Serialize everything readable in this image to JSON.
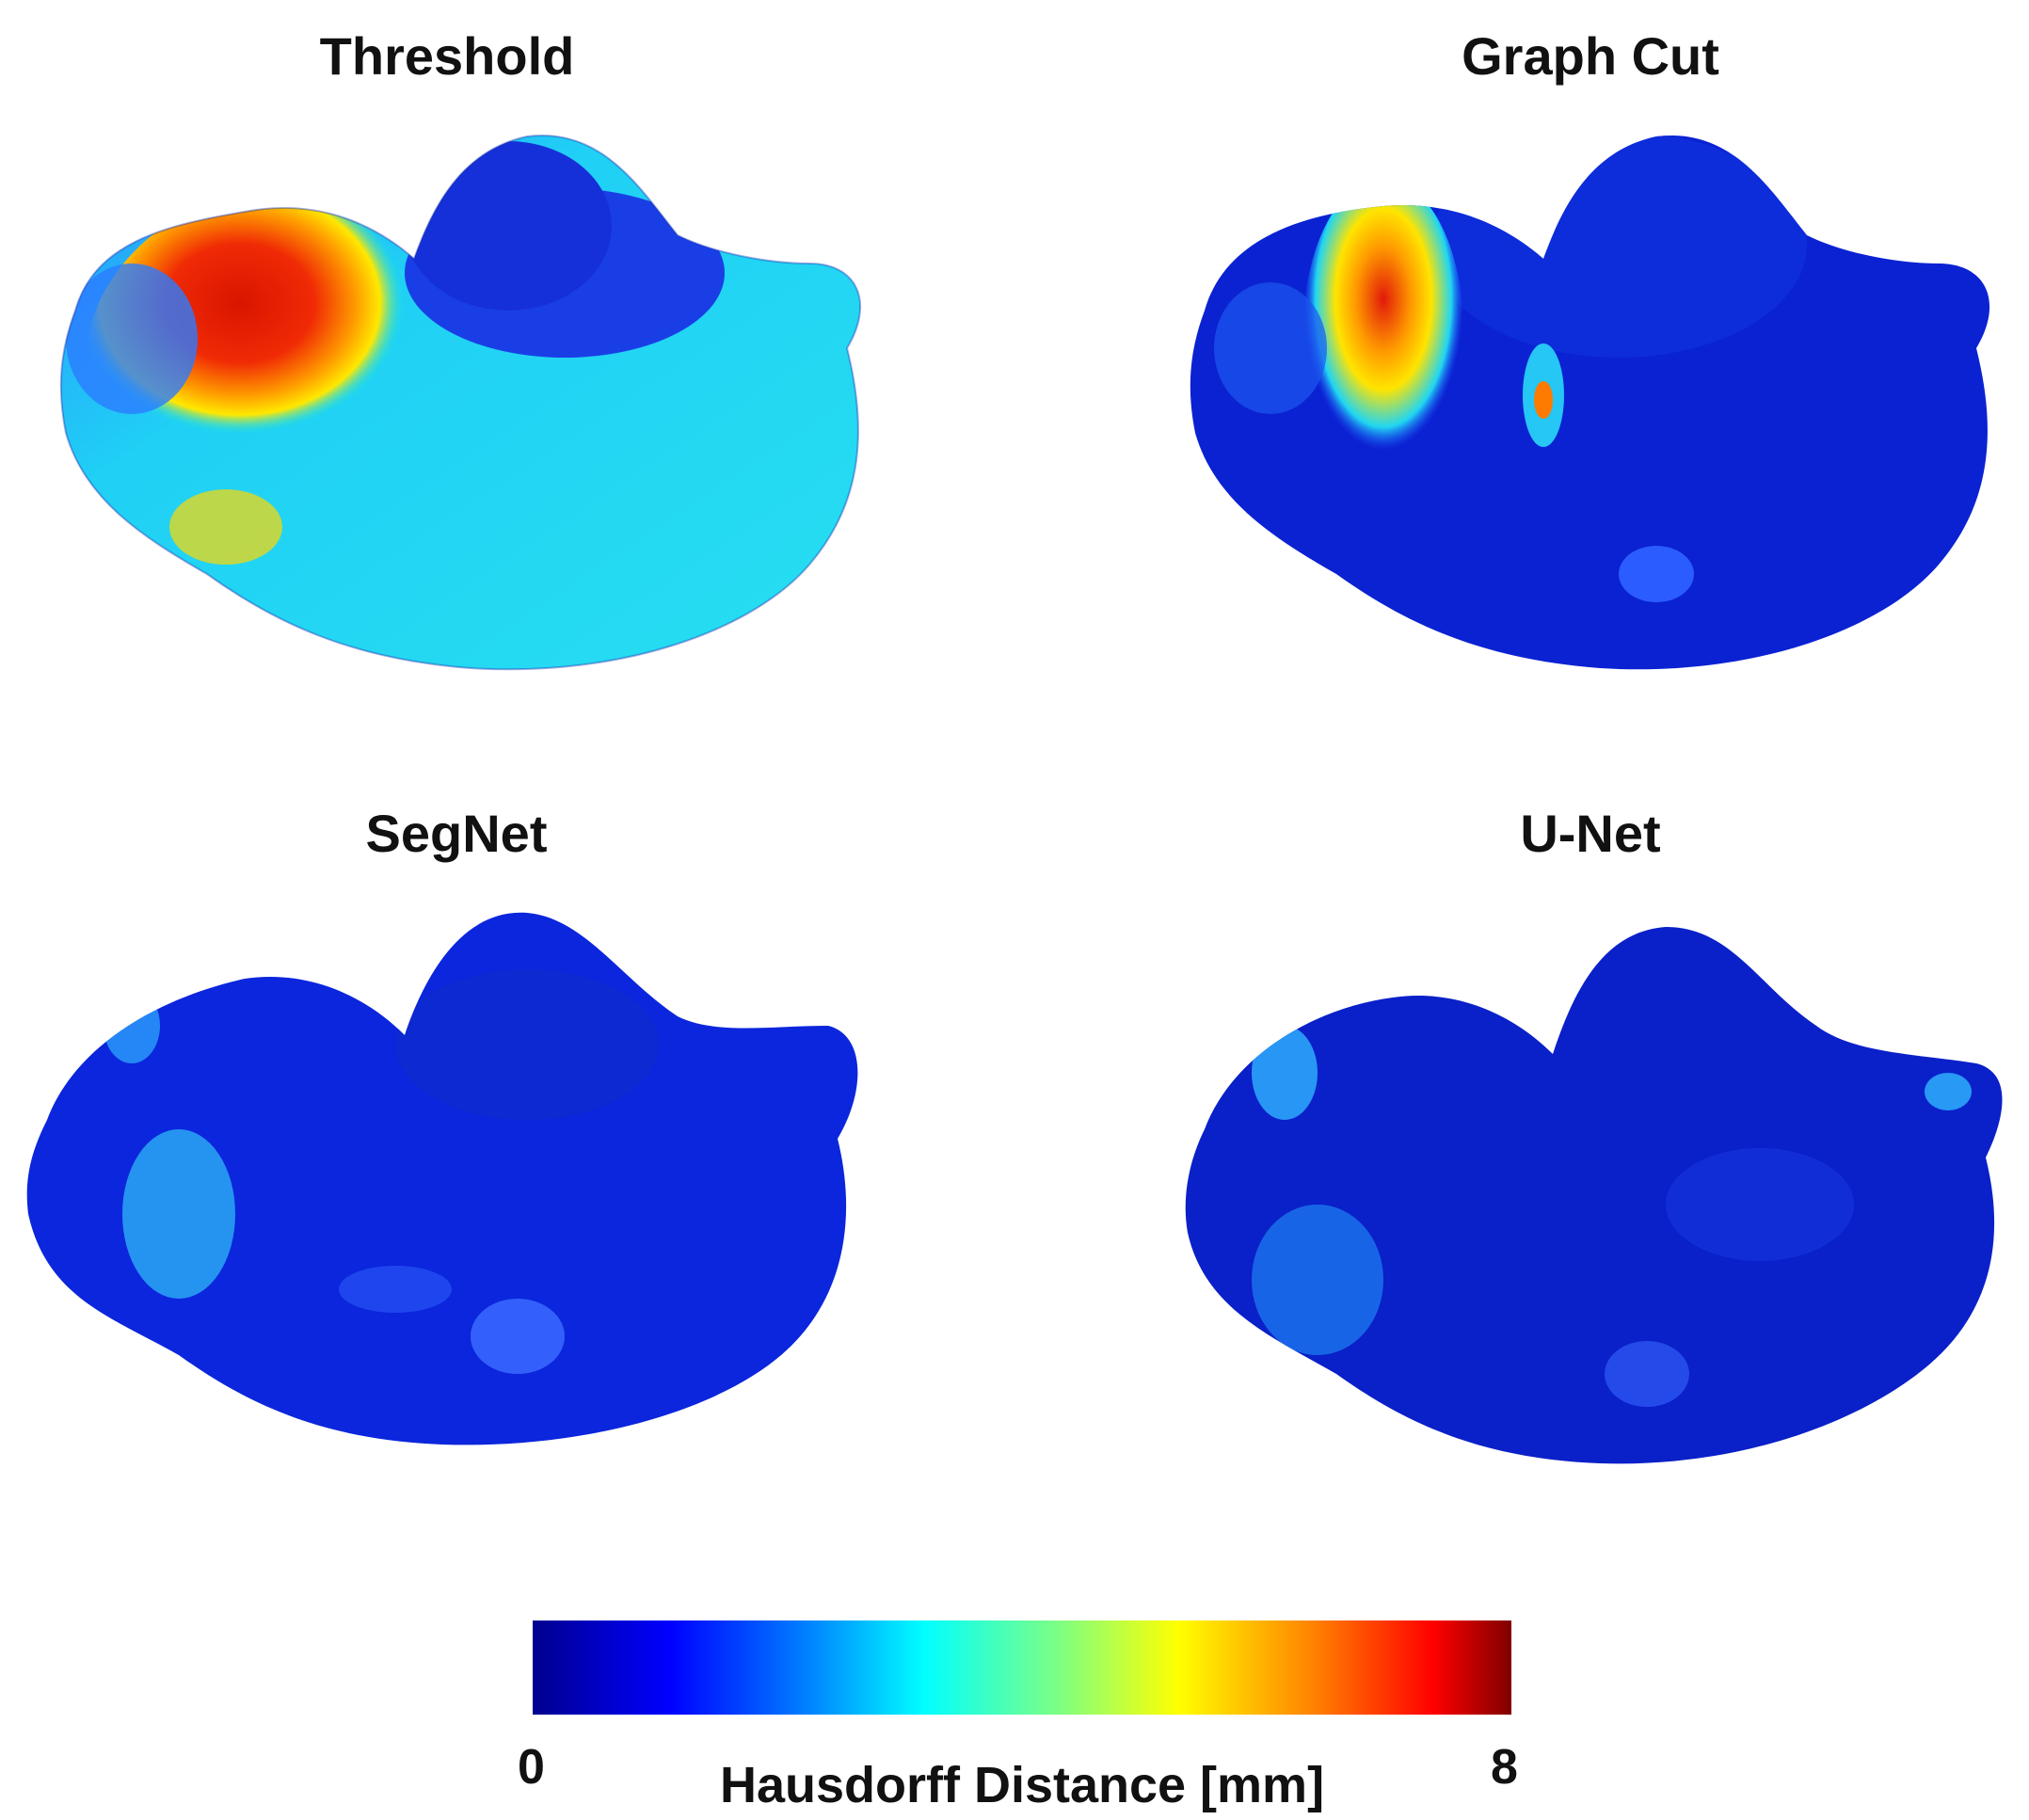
{
  "panels": {
    "threshold": {
      "title": "Threshold"
    },
    "graph_cut": {
      "title": "Graph Cut"
    },
    "segnet": {
      "title": "SegNet"
    },
    "unet": {
      "title": "U-Net"
    }
  },
  "colorbar": {
    "label": "Hausdorff Distance [mm]",
    "min": "0",
    "max": "8",
    "colormap": [
      "#00008f",
      "#0000ff",
      "#0080ff",
      "#00ffff",
      "#80ff80",
      "#ffff00",
      "#ff8000",
      "#ff0000",
      "#800000"
    ]
  },
  "colors": {
    "low": "#0a1fd6",
    "mid": "#00e5ee",
    "high": "#e21a0a"
  }
}
